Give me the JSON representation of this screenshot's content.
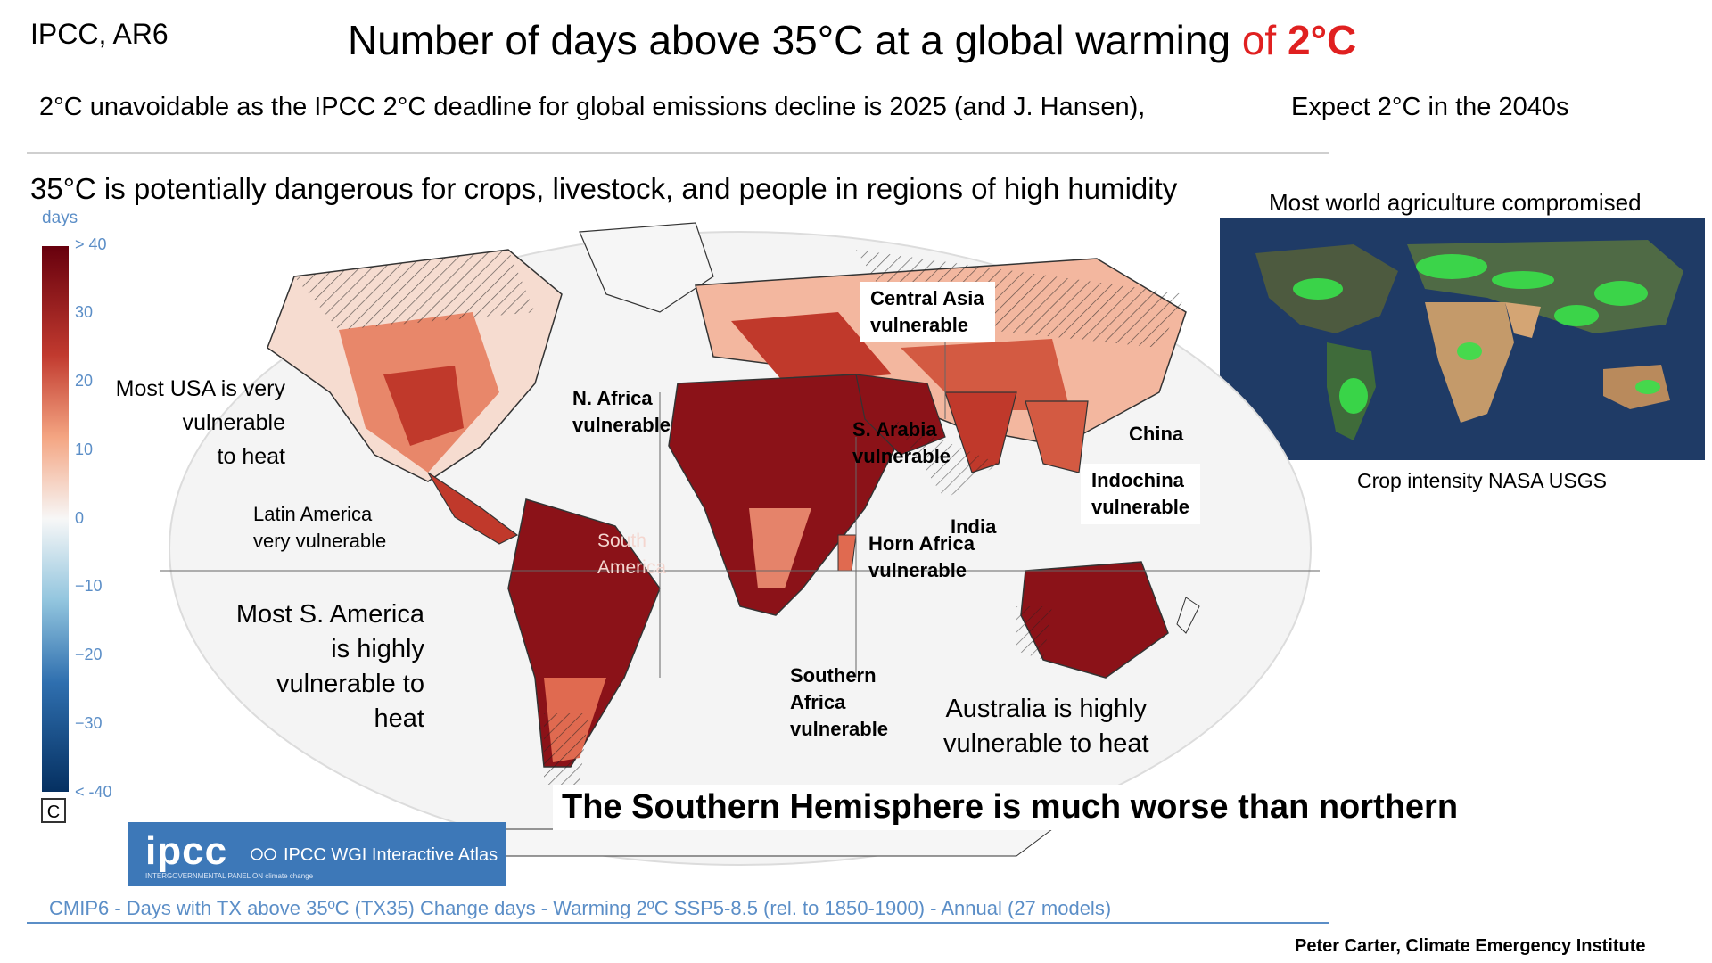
{
  "header": {
    "source": "IPCC, AR6",
    "title_main": "Number of days above 35°C at a global warming ",
    "title_accent": "of ",
    "title_accent_bold": "2°C",
    "subtitle_left": "2°C unavoidable as the IPCC 2°C deadline for global emissions decline  is 2025  (and J. Hansen),",
    "subtitle_right": "Expect 2°C in the 2040s",
    "danger_note": "35°C is potentially dangerous for crops, livestock, and people in regions of high humidity"
  },
  "inset": {
    "heading": "Most world agriculture compromised",
    "caption": "Crop intensity NASA USGS"
  },
  "legend": {
    "unit": "days",
    "ticks": [
      "> 40",
      "30",
      "20",
      "10",
      "0",
      "−10",
      "−20",
      "−30",
      "< -40"
    ],
    "button": "C"
  },
  "annotations": {
    "usa": [
      "Most USA is very",
      "vulnerable",
      "to heat"
    ],
    "latin_america": [
      "Latin America",
      "very vulnerable"
    ],
    "south_america": [
      "Most S. America",
      "is highly",
      "vulnerable to",
      "heat"
    ],
    "n_africa": [
      "N. Africa",
      "vulnerable"
    ],
    "central_asia": [
      "Central Asia",
      "vulnerable"
    ],
    "s_arabia": [
      "S. Arabia",
      "vulnerable"
    ],
    "china": "China",
    "indochina": [
      "Indochina",
      "vulnerable"
    ],
    "india": "India",
    "horn_africa": [
      "Horn Africa",
      "vulnerable"
    ],
    "southern_africa": [
      "Southern",
      "Africa",
      "vulnerable"
    ],
    "australia": [
      "Australia is highly",
      "vulnerable to  heat"
    ],
    "map_region_label": [
      "South",
      "America"
    ]
  },
  "footer": {
    "hemisphere_note": "The Southern Hemisphere is much worse than northern",
    "ipcc_logo": "ipcc",
    "ipcc_logo_sub": "INTERGOVERNMENTAL PANEL ON climate change",
    "atlas_label": "IPCC WGI Interactive Atlas",
    "dataset": "CMIP6 - Days with TX above 35ºC (TX35) Change days - Warming 2ºC SSP5-8.5 (rel. to 1850-1900) - Annual (27 models)",
    "credit": "Peter Carter,  Climate Emergency Institute"
  },
  "colors": {
    "accent_red": "#e02020",
    "legend_blue_text": "#5b8ec7",
    "banner_blue": "#3d78b8",
    "heat_dark": "#7a0f14",
    "heat_mid": "#c2392f",
    "heat_light": "#f2a58a"
  }
}
